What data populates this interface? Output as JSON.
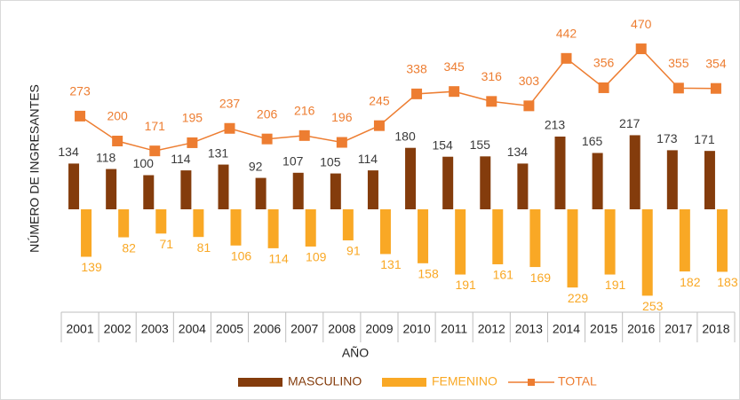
{
  "chart_data": {
    "type": "bar_line",
    "xlabel": "AÑO",
    "ylabel": "NÚMERO DE INGRESANTES",
    "categories": [
      "2001",
      "2002",
      "2003",
      "2004",
      "2005",
      "2006",
      "2007",
      "2008",
      "2009",
      "2010",
      "2011",
      "2012",
      "2013",
      "2014",
      "2015",
      "2016",
      "2017",
      "2018"
    ],
    "series": [
      {
        "name": "MASCULINO",
        "type": "bar",
        "direction": "up",
        "color": "#843C0C",
        "values": [
          134,
          118,
          100,
          114,
          131,
          92,
          107,
          105,
          114,
          180,
          154,
          155,
          134,
          213,
          165,
          217,
          173,
          171
        ]
      },
      {
        "name": "FEMENINO",
        "type": "bar",
        "direction": "down",
        "color": "#F9A825",
        "values": [
          139,
          82,
          71,
          81,
          106,
          114,
          109,
          91,
          131,
          158,
          191,
          161,
          169,
          229,
          191,
          253,
          182,
          183
        ]
      },
      {
        "name": "TOTAL",
        "type": "line",
        "color": "#ED7D31",
        "values": [
          273,
          200,
          171,
          195,
          237,
          206,
          216,
          196,
          245,
          338,
          345,
          316,
          303,
          442,
          356,
          470,
          355,
          354
        ]
      }
    ]
  }
}
